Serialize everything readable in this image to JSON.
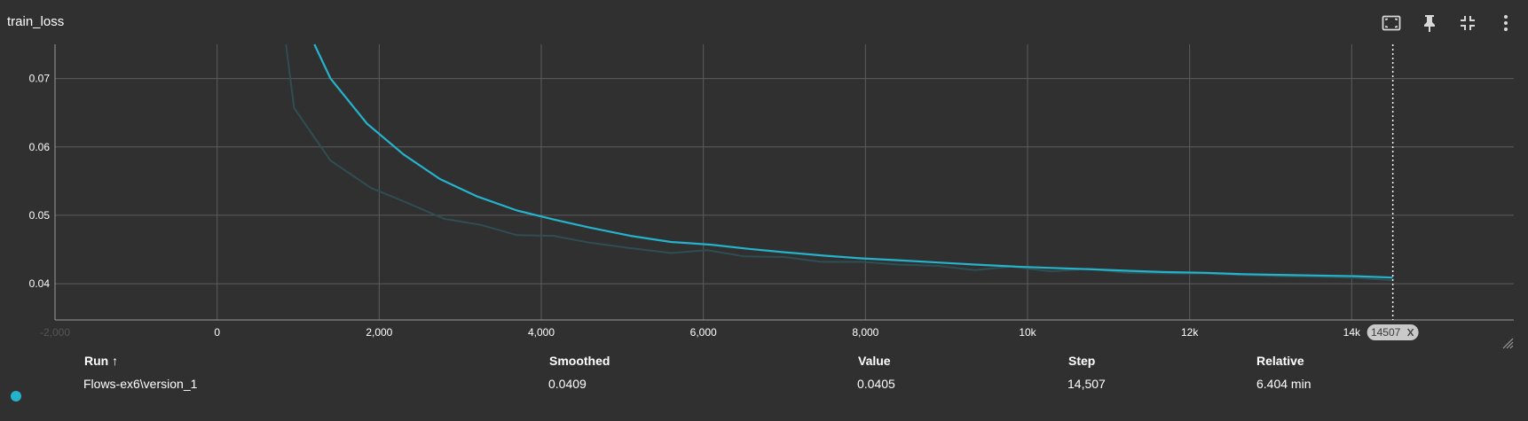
{
  "card": {
    "title": "train_loss"
  },
  "toolbar": [
    "fit-domain-icon",
    "pin-icon",
    "collapse-icon",
    "more-vert-icon"
  ],
  "chart_data": {
    "type": "line",
    "title": "train_loss",
    "xlabel": "",
    "ylabel": "",
    "xlim": [
      -2000,
      16000
    ],
    "ylim": [
      0.0347,
      0.075
    ],
    "x_ticks": [
      {
        "value": -2000,
        "label": "-2,000"
      },
      {
        "value": 0,
        "label": "0"
      },
      {
        "value": 2000,
        "label": "2,000"
      },
      {
        "value": 4000,
        "label": "4,000"
      },
      {
        "value": 6000,
        "label": "6,000"
      },
      {
        "value": 8000,
        "label": "8,000"
      },
      {
        "value": 10000,
        "label": "10k"
      },
      {
        "value": 12000,
        "label": "12k"
      },
      {
        "value": 14000,
        "label": "14k"
      }
    ],
    "y_ticks": [
      {
        "value": 0.04,
        "label": "0.04"
      },
      {
        "value": 0.05,
        "label": "0.05"
      },
      {
        "value": 0.06,
        "label": "0.06"
      },
      {
        "value": 0.07,
        "label": "0.07"
      }
    ],
    "grid": true,
    "cursor_step": 14507,
    "cursor_label": "14507",
    "colors": {
      "smoothed": "#25B3CC",
      "raw": "#2F4E54",
      "grid": "#5C5C5C",
      "background": "#303030"
    },
    "series": [
      {
        "name": "Flows-ex6\\version_1",
        "kind": "smoothed",
        "x": [
          1200,
          1400,
          1850,
          2300,
          2750,
          3200,
          3700,
          4150,
          4600,
          5100,
          5600,
          6100,
          6550,
          7000,
          7500,
          7950,
          8450,
          8900,
          9350,
          9850,
          10300,
          10800,
          11200,
          11700,
          12200,
          12650,
          13100,
          13550,
          14050,
          14507
        ],
        "y": [
          0.075,
          0.07,
          0.0634,
          0.0589,
          0.0553,
          0.0528,
          0.0507,
          0.0494,
          0.0482,
          0.047,
          0.0461,
          0.0457,
          0.0451,
          0.0446,
          0.0441,
          0.0437,
          0.0434,
          0.0431,
          0.0428,
          0.0425,
          0.0423,
          0.0421,
          0.0419,
          0.0417,
          0.0416,
          0.0414,
          0.0413,
          0.0412,
          0.0411,
          0.0409
        ]
      },
      {
        "name": "Flows-ex6\\version_1",
        "kind": "raw",
        "x": [
          850,
          950,
          1400,
          1900,
          2350,
          2800,
          3250,
          3700,
          4150,
          4600,
          5100,
          5600,
          6050,
          6500,
          7000,
          7450,
          7950,
          8400,
          8900,
          9350,
          9800,
          10300,
          10750,
          11200,
          11700,
          12150,
          12600,
          13100,
          13550,
          14000,
          14507
        ],
        "y": [
          0.075,
          0.0657,
          0.058,
          0.054,
          0.0518,
          0.0495,
          0.0486,
          0.0471,
          0.047,
          0.046,
          0.0452,
          0.0445,
          0.0449,
          0.044,
          0.0439,
          0.0432,
          0.0432,
          0.0428,
          0.0426,
          0.042,
          0.0425,
          0.0418,
          0.0422,
          0.0416,
          0.0415,
          0.0415,
          0.0413,
          0.0411,
          0.041,
          0.0409,
          0.0405
        ]
      }
    ]
  },
  "table": {
    "headers": {
      "run": "Run ↑",
      "smoothed": "Smoothed",
      "value": "Value",
      "step": "Step",
      "relative": "Relative"
    },
    "rows": [
      {
        "run": "Flows-ex6\\version_1",
        "smoothed": "0.0409",
        "value": "0.0405",
        "step": "14,507",
        "relative": "6.404 min",
        "color": "#25B3CC"
      }
    ]
  }
}
